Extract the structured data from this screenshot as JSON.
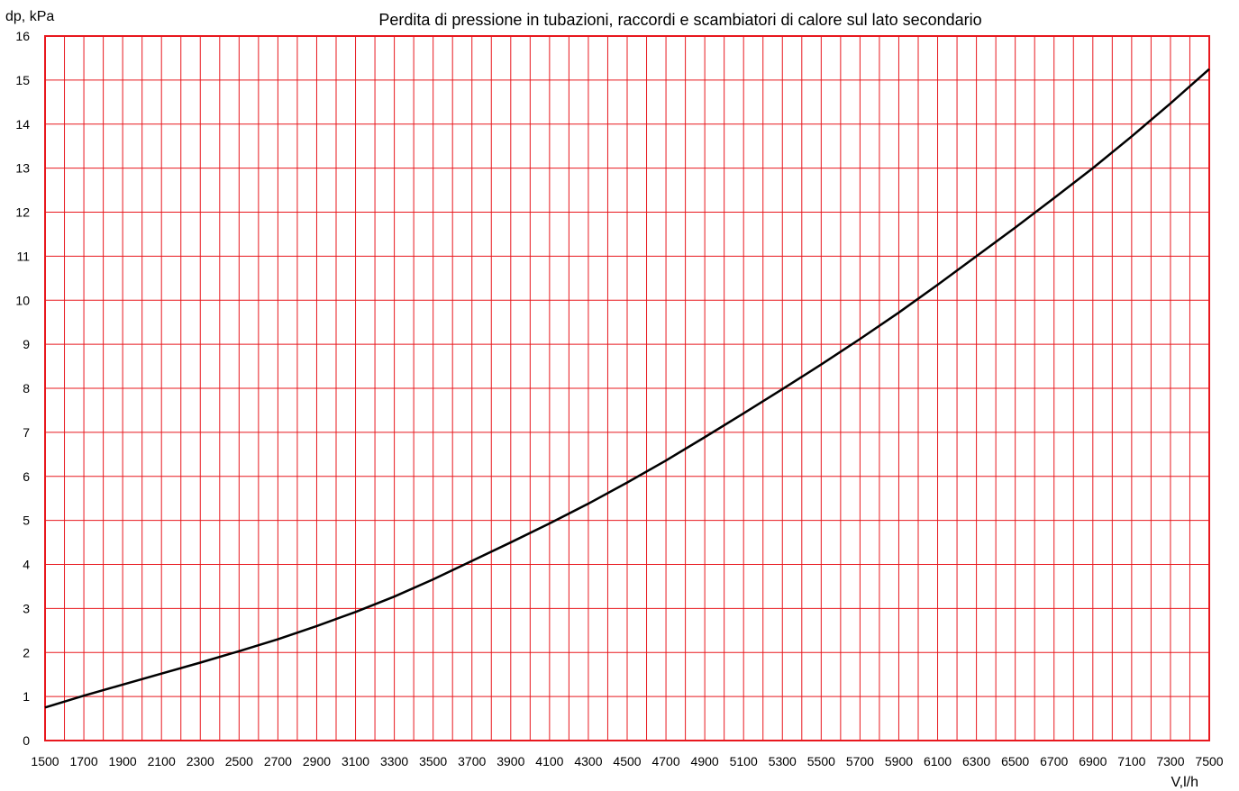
{
  "chart_data": {
    "type": "line",
    "title": "Perdita di pressione in tubazioni, raccordi e scambiatori di calore sul lato secondario",
    "ylabel": "dp, kPa",
    "xlabel": "V,l/h",
    "xlim": [
      1500,
      7500
    ],
    "ylim": [
      0,
      16
    ],
    "x_step": 100,
    "x_label_step": 200,
    "y_step": 1,
    "grid": true,
    "grid_color": "#e8181e",
    "line_color": "#000000",
    "series": [
      {
        "x": [
          1500,
          1700,
          1900,
          2100,
          2300,
          2500,
          2700,
          2900,
          3100,
          3300,
          3500,
          3700,
          3900,
          4100,
          4300,
          4500,
          4700,
          4900,
          5100,
          5300,
          5500,
          5700,
          5900,
          6100,
          6300,
          6500,
          6700,
          6900,
          7100,
          7300,
          7500
        ],
        "values": [
          0.75,
          1.02,
          1.27,
          1.52,
          1.77,
          2.03,
          2.3,
          2.6,
          2.92,
          3.27,
          3.66,
          4.08,
          4.5,
          4.93,
          5.38,
          5.86,
          6.36,
          6.89,
          7.43,
          7.98,
          8.54,
          9.12,
          9.72,
          10.35,
          11.0,
          11.65,
          12.32,
          13.0,
          13.72,
          14.47,
          15.25
        ]
      }
    ]
  }
}
